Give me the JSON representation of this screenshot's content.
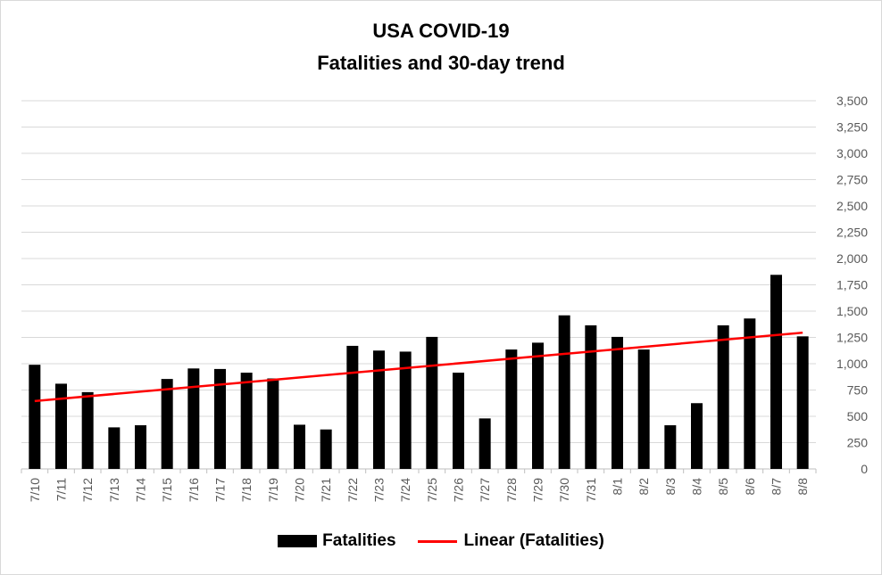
{
  "chart_data": {
    "type": "bar",
    "title": "USA COVID-19",
    "subtitle": "Fatalities and 30-day trend",
    "categories": [
      "7/10",
      "7/11",
      "7/12",
      "7/13",
      "7/14",
      "7/15",
      "7/16",
      "7/17",
      "7/18",
      "7/19",
      "7/20",
      "7/21",
      "7/22",
      "7/23",
      "7/24",
      "7/25",
      "7/26",
      "7/27",
      "7/28",
      "7/29",
      "7/30",
      "7/31",
      "8/1",
      "8/2",
      "8/3",
      "8/4",
      "8/5",
      "8/6",
      "8/7",
      "8/8"
    ],
    "series": [
      {
        "name": "Fatalities",
        "color": "#000000",
        "values": [
          990,
          810,
          730,
          395,
          415,
          855,
          955,
          950,
          915,
          860,
          420,
          375,
          1170,
          1125,
          1115,
          1255,
          915,
          480,
          1135,
          1200,
          1460,
          1365,
          1255,
          1135,
          415,
          625,
          1365,
          1430,
          1845,
          1260
        ]
      }
    ],
    "trendline": {
      "name": "Linear (Fatalities)",
      "type": "linear",
      "color": "#ff0000",
      "start": 645,
      "end": 1295
    },
    "ylim": [
      0,
      3500
    ],
    "yticks": [
      0,
      250,
      500,
      750,
      1000,
      1250,
      1500,
      1750,
      2000,
      2250,
      2500,
      2750,
      3000,
      3250,
      3500
    ],
    "ytick_labels": [
      "0",
      "250",
      "500",
      "750",
      "1,000",
      "1,250",
      "1,500",
      "1,750",
      "2,000",
      "2,250",
      "2,500",
      "2,750",
      "3,000",
      "3,250",
      "3,500"
    ],
    "y_axis_side": "right",
    "xlabel": "",
    "ylabel": "",
    "grid": true,
    "legend_position": "bottom"
  }
}
